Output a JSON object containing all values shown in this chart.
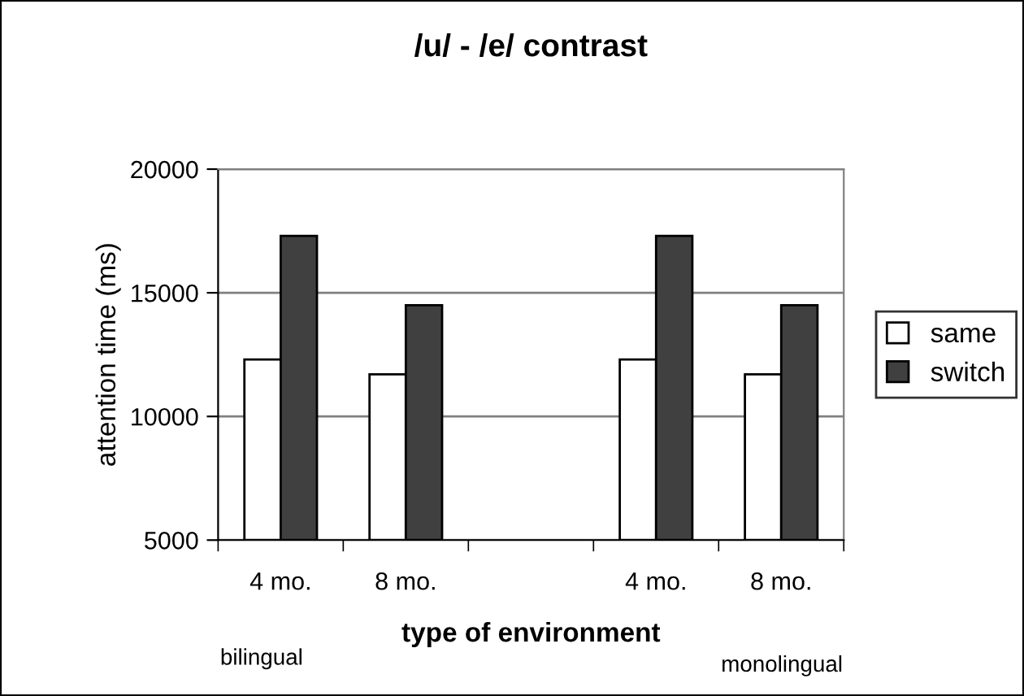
{
  "chart_data": {
    "type": "bar",
    "title": "/u/ - /e/ contrast",
    "xlabel": "type of environment",
    "ylabel": "attention time (ms)",
    "categories": [
      "4 mo.",
      "8 mo.",
      null,
      "4 mo.",
      "8 mo."
    ],
    "series": [
      {
        "name": "same",
        "color": "#ffffff",
        "values": [
          12300,
          11700,
          null,
          12300,
          11700
        ]
      },
      {
        "name": "switch",
        "color": "#404040",
        "values": [
          17300,
          14500,
          null,
          17300,
          14500
        ]
      }
    ],
    "ylim": [
      5000,
      20000
    ],
    "yticks": [
      5000,
      10000,
      15000,
      20000
    ],
    "grid": "y",
    "legend": "right",
    "annotations": [
      "bilingual",
      "monolingual"
    ]
  }
}
